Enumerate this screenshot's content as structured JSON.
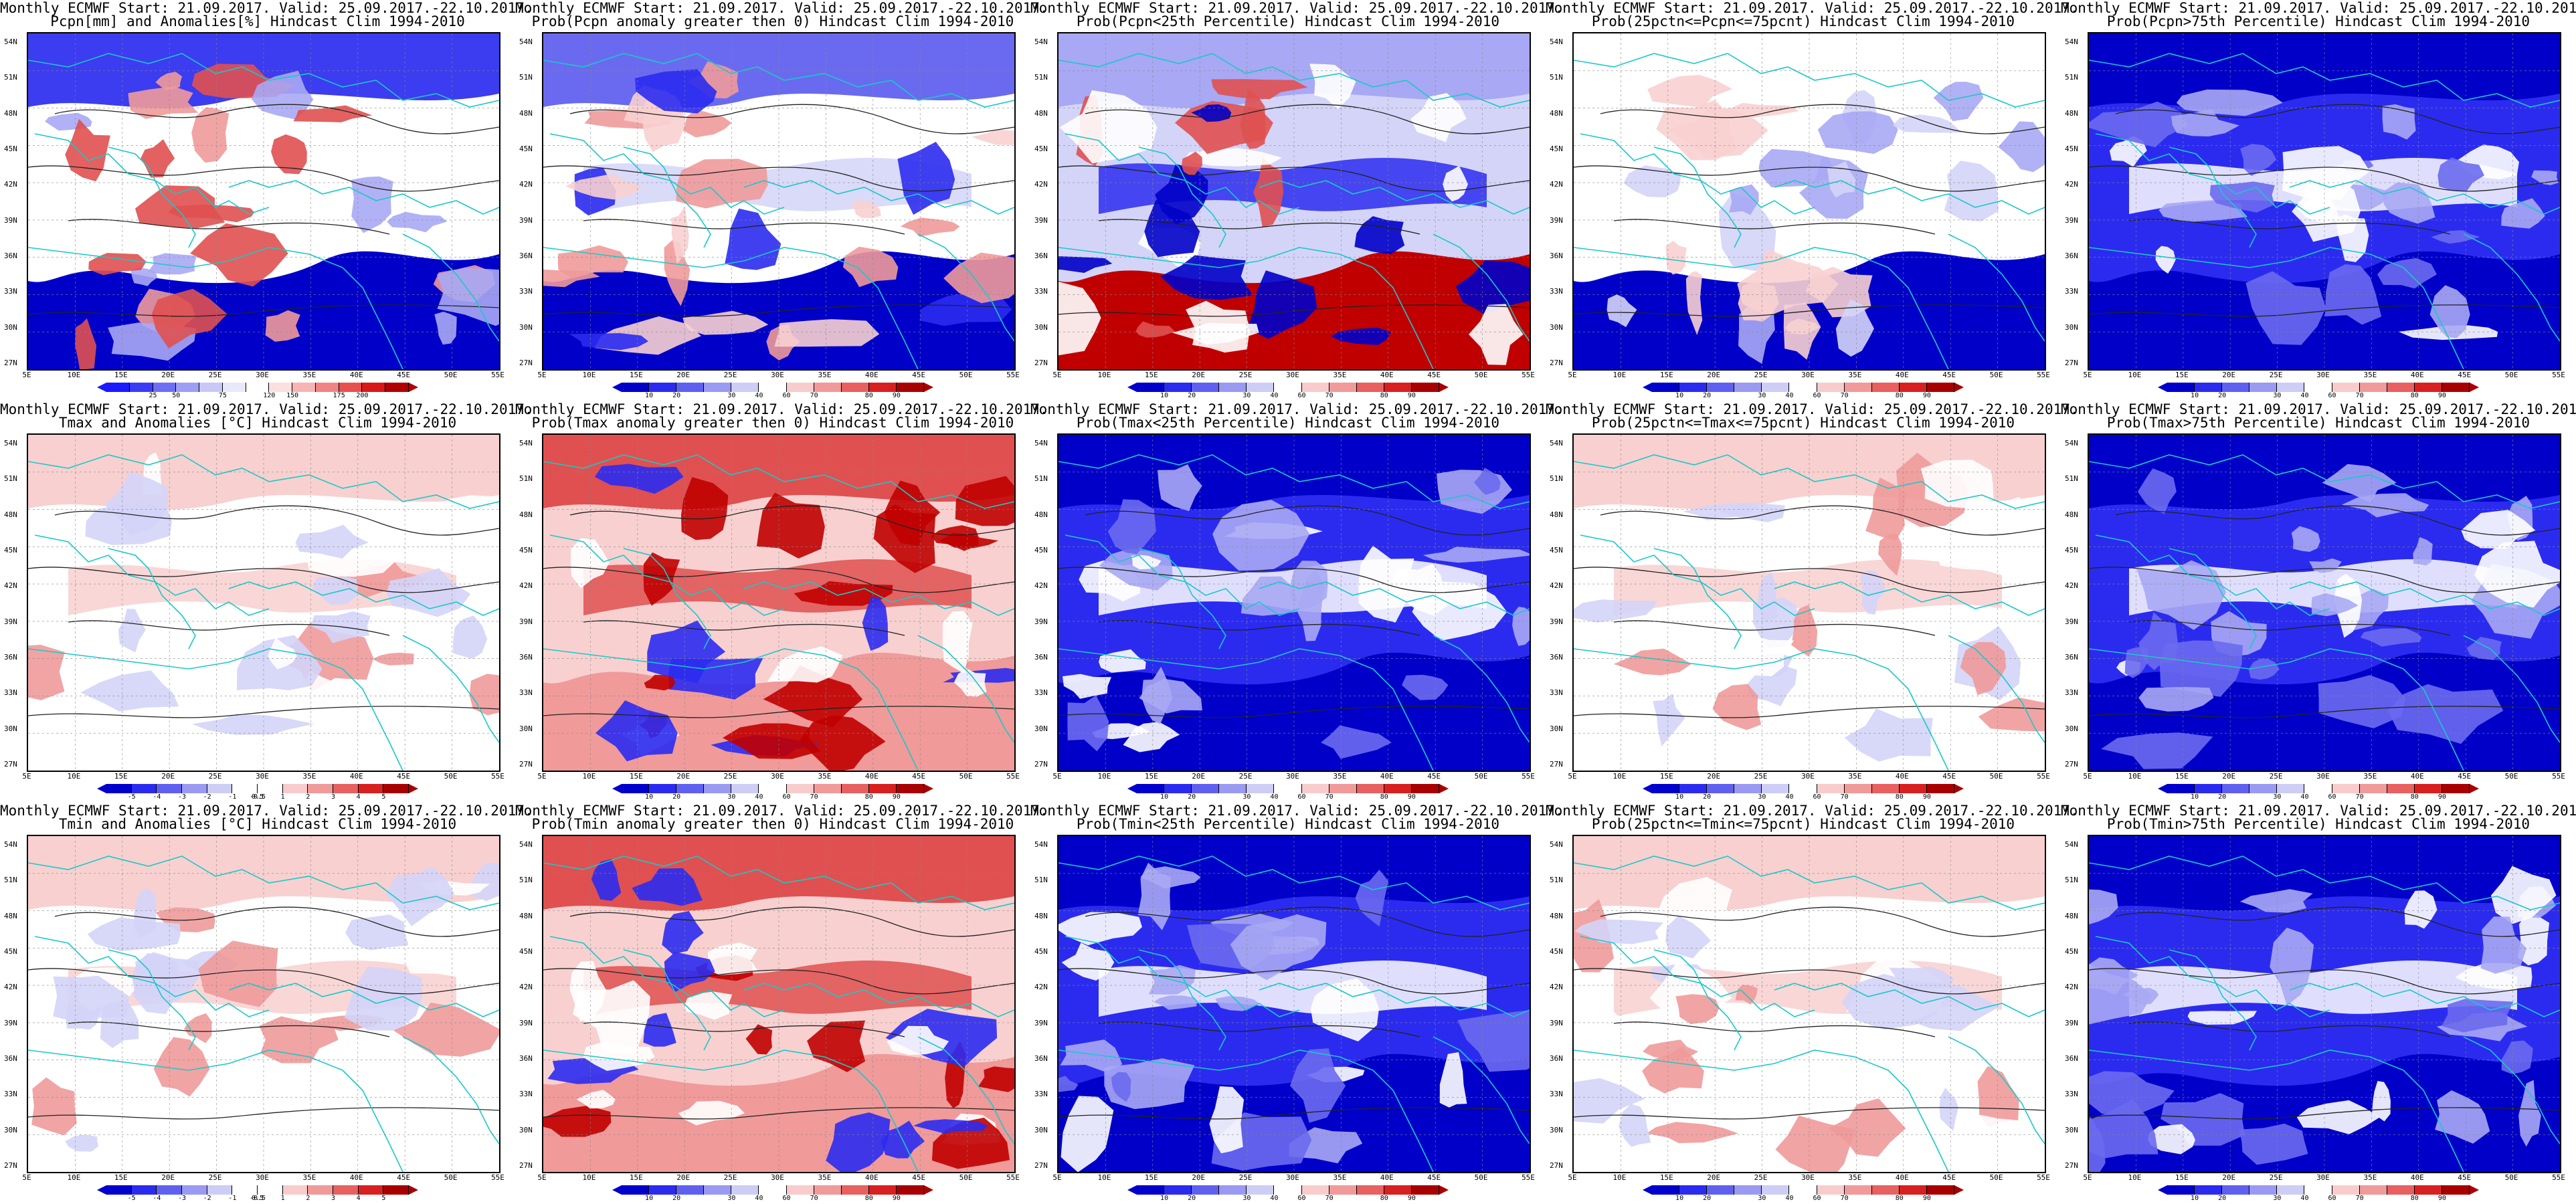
{
  "common": {
    "line1": "Monthly ECMWF Start: 21.09.2017. Valid: 25.09.2017.-22.10.2017.",
    "lat_ticks": [
      "54N",
      "51N",
      "48N",
      "45N",
      "42N",
      "39N",
      "36N",
      "33N",
      "30N",
      "27N"
    ],
    "lon_ticks": [
      "5E",
      "10E",
      "15E",
      "20E",
      "25E",
      "30E",
      "35E",
      "40E",
      "45E",
      "50E",
      "55E"
    ]
  },
  "colorbars": {
    "pcpn_anom": {
      "colors": [
        "#1a1aff",
        "#3c3cf5",
        "#6e6ef2",
        "#9e9ef5",
        "#c8c8f7",
        "#e8e8fb",
        "#ffffff",
        "#fbe0e0",
        "#f7b4b4",
        "#f08484",
        "#e85050",
        "#d81818",
        "#b00000"
      ],
      "labels": [
        "25",
        "50",
        "75",
        "120",
        "150",
        "175",
        "200"
      ]
    },
    "prob": {
      "colors": [
        "#0000cc",
        "#2b2bf0",
        "#6060f0",
        "#9a9af2",
        "#cdcdf6",
        "#ffffff",
        "#f8cccc",
        "#f09a9a",
        "#e86060",
        "#d82020",
        "#a80000"
      ],
      "labels": [
        "10",
        "20",
        "30",
        "40",
        "60",
        "70",
        "80",
        "90"
      ]
    },
    "temp_anom": {
      "colors": [
        "#0000cc",
        "#2b2bf0",
        "#6060f0",
        "#9a9af2",
        "#cdcdf6",
        "#ffffff",
        "#ffffff",
        "#f8cccc",
        "#f09a9a",
        "#e86060",
        "#d82020",
        "#a80000"
      ],
      "labels": [
        "-5",
        "-4",
        "-3",
        "-2",
        "-1",
        "-0.5",
        "0.5",
        "1",
        "2",
        "3",
        "4",
        "5"
      ]
    }
  },
  "panels": [
    {
      "title": "Pcpn[mm] and Anomalies[%] Hindcast Clim 1994-2010",
      "bar": "pcpn_anom",
      "scheme": "anom_p"
    },
    {
      "title": "Prob(Pcpn anomaly greater then 0) Hindcast Clim 1994-2010",
      "bar": "prob",
      "scheme": "blue_s"
    },
    {
      "title": "Prob(Pcpn<25th Percentile) Hindcast Clim 1994-2010",
      "bar": "prob",
      "scheme": "dry"
    },
    {
      "title": "Prob(25pctn<=Pcpn<=75pcnt) Hindcast Clim 1994-2010",
      "bar": "prob",
      "scheme": "mid_b"
    },
    {
      "title": "Prob(Pcpn>75th Percentile) Hindcast Clim 1994-2010",
      "bar": "prob",
      "scheme": "blue_all"
    },
    {
      "title": "Tmax and Anomalies [°C] Hindcast Clim 1994-2010",
      "bar": "temp_anom",
      "scheme": "warm_light"
    },
    {
      "title": "Prob(Tmax anomaly greater then 0) Hindcast Clim 1994-2010",
      "bar": "prob",
      "scheme": "warm_strong"
    },
    {
      "title": "Prob(Tmax<25th Percentile) Hindcast Clim 1994-2010",
      "bar": "prob",
      "scheme": "blue_all"
    },
    {
      "title": "Prob(25pctn<=Tmax<=75pcnt) Hindcast Clim 1994-2010",
      "bar": "prob",
      "scheme": "warm_light"
    },
    {
      "title": "Prob(Tmax>75th Percentile) Hindcast Clim 1994-2010",
      "bar": "prob",
      "scheme": "blue_all"
    },
    {
      "title": "Tmin and Anomalies [°C] Hindcast Clim 1994-2010",
      "bar": "temp_anom",
      "scheme": "warm_light"
    },
    {
      "title": "Prob(Tmin anomaly greater then 0) Hindcast Clim 1994-2010",
      "bar": "prob",
      "scheme": "warm_strong"
    },
    {
      "title": "Prob(Tmin<25th Percentile) Hindcast Clim 1994-2010",
      "bar": "prob",
      "scheme": "blue_all"
    },
    {
      "title": "Prob(25pctn<=Tmin<=75pcnt) Hindcast Clim 1994-2010",
      "bar": "prob",
      "scheme": "warm_light"
    },
    {
      "title": "Prob(Tmin>75th Percentile) Hindcast Clim 1994-2010",
      "bar": "prob",
      "scheme": "blue_all"
    }
  ]
}
